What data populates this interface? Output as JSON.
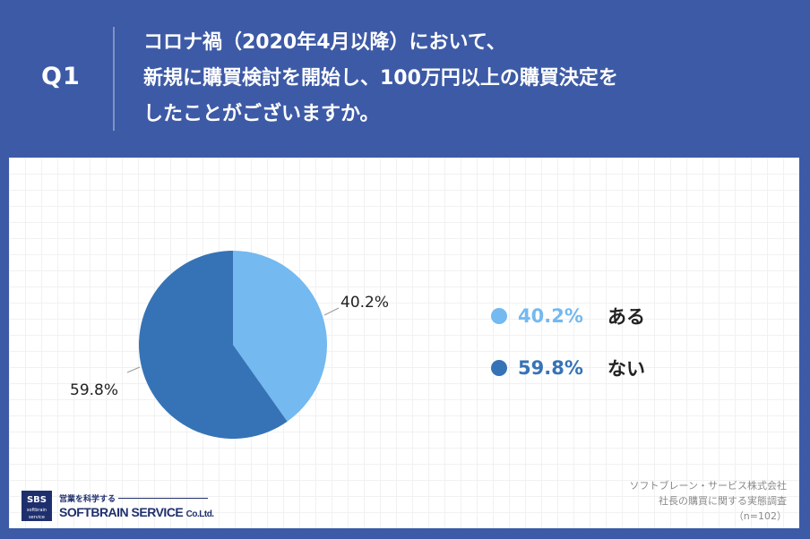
{
  "header": {
    "q_label": "Q1",
    "question_lines": [
      "コロナ禍（2020年4月以降）において、",
      "新規に購買検討を開始し、100万円以上の購買決定を",
      "したことがございますか。"
    ]
  },
  "chart_data": {
    "type": "pie",
    "categories": [
      "ある",
      "ない"
    ],
    "values": [
      40.2,
      59.8
    ],
    "value_labels": [
      "40.2%",
      "59.8%"
    ],
    "colors": [
      "#74b9f0",
      "#3673b6"
    ],
    "legend_position": "right"
  },
  "source": {
    "lines": [
      "ソフトブレーン・サービス株式会社",
      "社長の購買に関する実態調査",
      "（n=102）"
    ]
  },
  "logo": {
    "box_text": "SBS",
    "box_sub": "softbrain service",
    "tagline": "営業を科学する",
    "name": "SOFTBRAIN SERVICE",
    "suffix": "Co.Ltd."
  }
}
